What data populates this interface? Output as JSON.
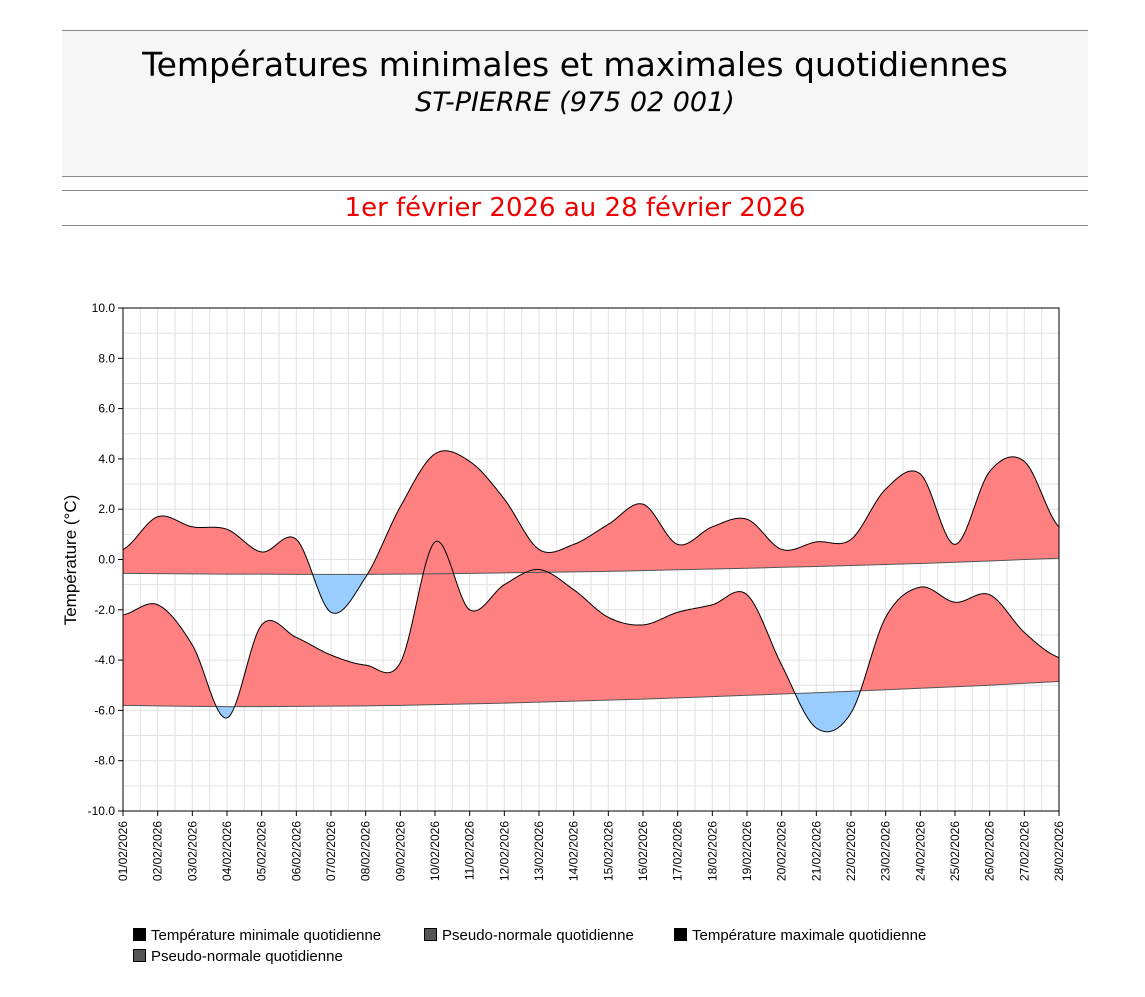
{
  "header": {
    "title": "Températures minimales et maximales quotidiennes",
    "subtitle": "ST-PIERRE (975 02 001)",
    "period": "1er février 2026 au 28 février 2026"
  },
  "colors": {
    "above_normal": "#ff8080",
    "below_normal": "#99ccff",
    "period_text": "#ee0000",
    "legend_dark": "#000000",
    "legend_gray": "#555555"
  },
  "chart_data": {
    "type": "area",
    "title": "",
    "xlabel": "",
    "ylabel": "Température (°C)",
    "ylim": [
      -10,
      10
    ],
    "yticks": [
      "10.0",
      "8.0",
      "6.0",
      "4.0",
      "2.0",
      "0.0",
      "-2.0",
      "-4.0",
      "-6.0",
      "-8.0",
      "-10.0"
    ],
    "ytick_values": [
      10,
      8,
      6,
      4,
      2,
      0,
      -2,
      -4,
      -6,
      -8,
      -10
    ],
    "grid": true,
    "legend_position": "bottom",
    "categories": [
      "01/02/2026",
      "02/02/2026",
      "03/02/2026",
      "04/02/2026",
      "05/02/2026",
      "06/02/2026",
      "07/02/2026",
      "08/02/2026",
      "09/02/2026",
      "10/02/2026",
      "11/02/2026",
      "12/02/2026",
      "13/02/2026",
      "14/02/2026",
      "15/02/2026",
      "16/02/2026",
      "17/02/2026",
      "18/02/2026",
      "19/02/2026",
      "20/02/2026",
      "21/02/2026",
      "22/02/2026",
      "23/02/2026",
      "24/02/2026",
      "25/02/2026",
      "26/02/2026",
      "27/02/2026",
      "28/02/2026"
    ],
    "series": [
      {
        "name": "Température minimale quotidienne",
        "values": [
          -2.2,
          -1.8,
          -3.4,
          -6.3,
          -2.6,
          -3.1,
          -3.8,
          -4.2,
          -4.1,
          0.7,
          -2.0,
          -1.0,
          -0.4,
          -1.2,
          -2.3,
          -2.6,
          -2.1,
          -1.8,
          -1.4,
          -4.2,
          -6.7,
          -6.1,
          -2.3,
          -1.1,
          -1.7,
          -1.4,
          -2.9,
          -3.9
        ]
      },
      {
        "name": "Pseudo-normale quotidienne",
        "values": [
          -5.8,
          -5.82,
          -5.84,
          -5.85,
          -5.85,
          -5.84,
          -5.83,
          -5.82,
          -5.8,
          -5.77,
          -5.74,
          -5.71,
          -5.67,
          -5.63,
          -5.59,
          -5.55,
          -5.5,
          -5.45,
          -5.4,
          -5.35,
          -5.3,
          -5.24,
          -5.18,
          -5.12,
          -5.06,
          -5.0,
          -4.92,
          -4.85
        ]
      },
      {
        "name": "Température maximale quotidienne",
        "values": [
          0.4,
          1.7,
          1.3,
          1.2,
          0.3,
          0.8,
          -2.1,
          -0.7,
          2.1,
          4.2,
          3.9,
          2.4,
          0.4,
          0.6,
          1.4,
          2.2,
          0.6,
          1.3,
          1.6,
          0.4,
          0.7,
          0.8,
          2.8,
          3.4,
          0.6,
          3.5,
          3.9,
          1.3
        ]
      },
      {
        "name": "Pseudo-normale quotidienne",
        "values": [
          -0.55,
          -0.56,
          -0.57,
          -0.58,
          -0.58,
          -0.59,
          -0.59,
          -0.59,
          -0.58,
          -0.57,
          -0.55,
          -0.53,
          -0.51,
          -0.49,
          -0.47,
          -0.44,
          -0.41,
          -0.38,
          -0.35,
          -0.31,
          -0.28,
          -0.24,
          -0.2,
          -0.16,
          -0.11,
          -0.06,
          0.0,
          0.05
        ]
      }
    ]
  }
}
